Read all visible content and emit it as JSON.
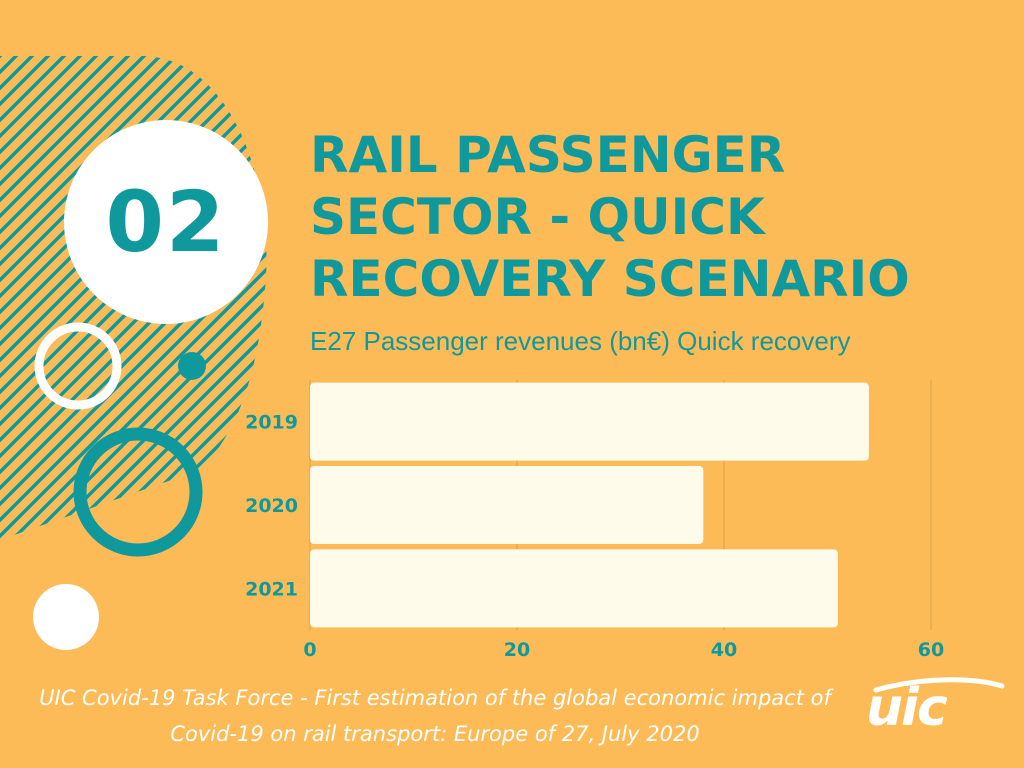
{
  "badge": {
    "number": "02"
  },
  "heading": {
    "title": "RAIL PASSENGER SECTOR - QUICK RECOVERY SCENARIO"
  },
  "chart_data": {
    "type": "bar",
    "orientation": "horizontal",
    "title": "E27 Passenger revenues (bn€) Quick recovery",
    "categories": [
      "2019",
      "2020",
      "2021"
    ],
    "values": [
      54,
      38,
      51
    ],
    "xticks": [
      "0",
      "20",
      "40",
      "60"
    ],
    "xlim": [
      0,
      60
    ],
    "grid": true,
    "colors": {
      "bar": "#fffbea",
      "text": "#10999c",
      "grid": "#d9a24a"
    }
  },
  "footer": {
    "caption": "UIC Covid-19 Task Force - First estimation of the global economic impact of Covid-19 on rail transport: Europe of 27, July 2020",
    "logo_text": "uic"
  },
  "colors": {
    "background": "#fdbb57",
    "accent": "#10999c",
    "white": "#ffffff"
  }
}
